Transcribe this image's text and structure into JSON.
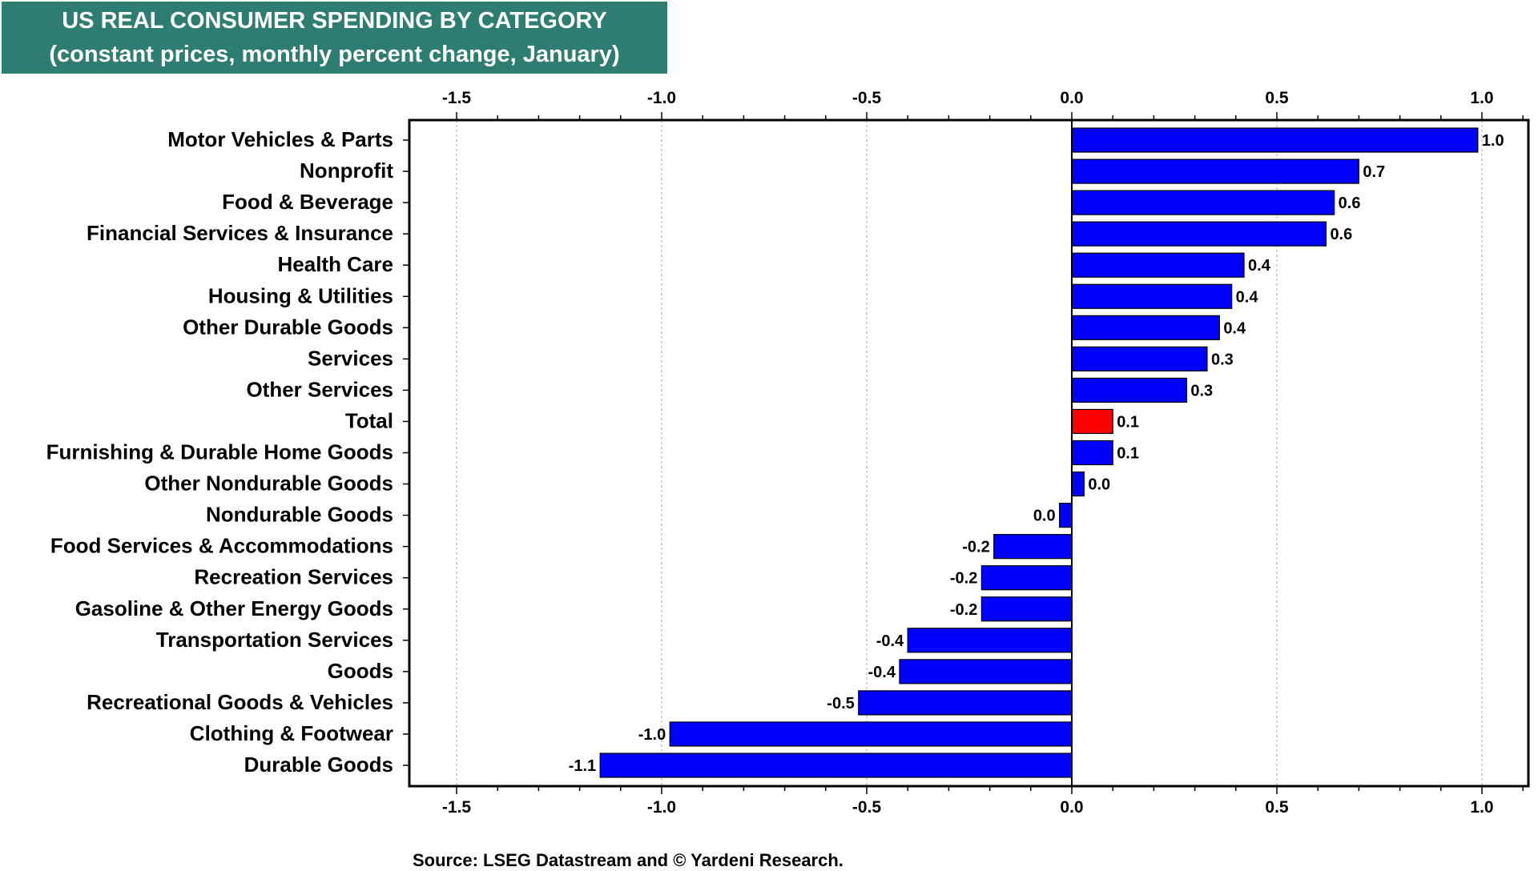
{
  "chart_data": {
    "type": "bar",
    "orientation": "horizontal",
    "title": "US REAL CONSUMER SPENDING BY CATEGORY",
    "subtitle": "(constant prices, monthly percent change, January)",
    "source": "Source: LSEG Datastream and © Yardeni Research.",
    "xlim": [
      -1.6,
      1.12
    ],
    "xticks": [
      "-1.5",
      "-1.0",
      "-0.5",
      "0.0",
      "0.5",
      "1.0"
    ],
    "xtick_values": [
      -1.5,
      -1.0,
      -0.5,
      0.0,
      0.5,
      1.0
    ],
    "grid": "vertical dotted at major ticks",
    "categories": [
      "Motor Vehicles & Parts",
      "Nonprofit",
      "Food & Beverage",
      "Financial Services & Insurance",
      "Health Care",
      "Housing & Utilities",
      "Other Durable Goods",
      "Services",
      "Other Services",
      "Total",
      "Furnishing & Durable Home Goods",
      "Other Nondurable Goods",
      "Nondurable Goods",
      "Food Services & Accommodations",
      "Recreation Services",
      "Gasoline & Other Energy Goods",
      "Transportation Services",
      "Goods",
      "Recreational Goods & Vehicles",
      "Clothing & Footwear",
      "Durable Goods"
    ],
    "values": [
      0.99,
      0.7,
      0.64,
      0.62,
      0.42,
      0.39,
      0.36,
      0.33,
      0.28,
      0.1,
      0.1,
      0.03,
      -0.03,
      -0.19,
      -0.22,
      -0.22,
      -0.4,
      -0.42,
      -0.52,
      -0.98,
      -1.15
    ],
    "labels": [
      "1.0",
      "0.7",
      "0.6",
      "0.6",
      "0.4",
      "0.4",
      "0.4",
      "0.3",
      "0.3",
      "0.1",
      "0.1",
      "0.0",
      "0.0",
      "-0.2",
      "-0.2",
      "-0.2",
      "-0.4",
      "-0.4",
      "-0.5",
      "-1.0",
      "-1.1"
    ],
    "highlight_category": "Total",
    "colors": {
      "bar": "#0000ff",
      "highlight": "#ff0000",
      "title_bg": "#2e7d72",
      "grid": "#c8c8c8"
    }
  }
}
